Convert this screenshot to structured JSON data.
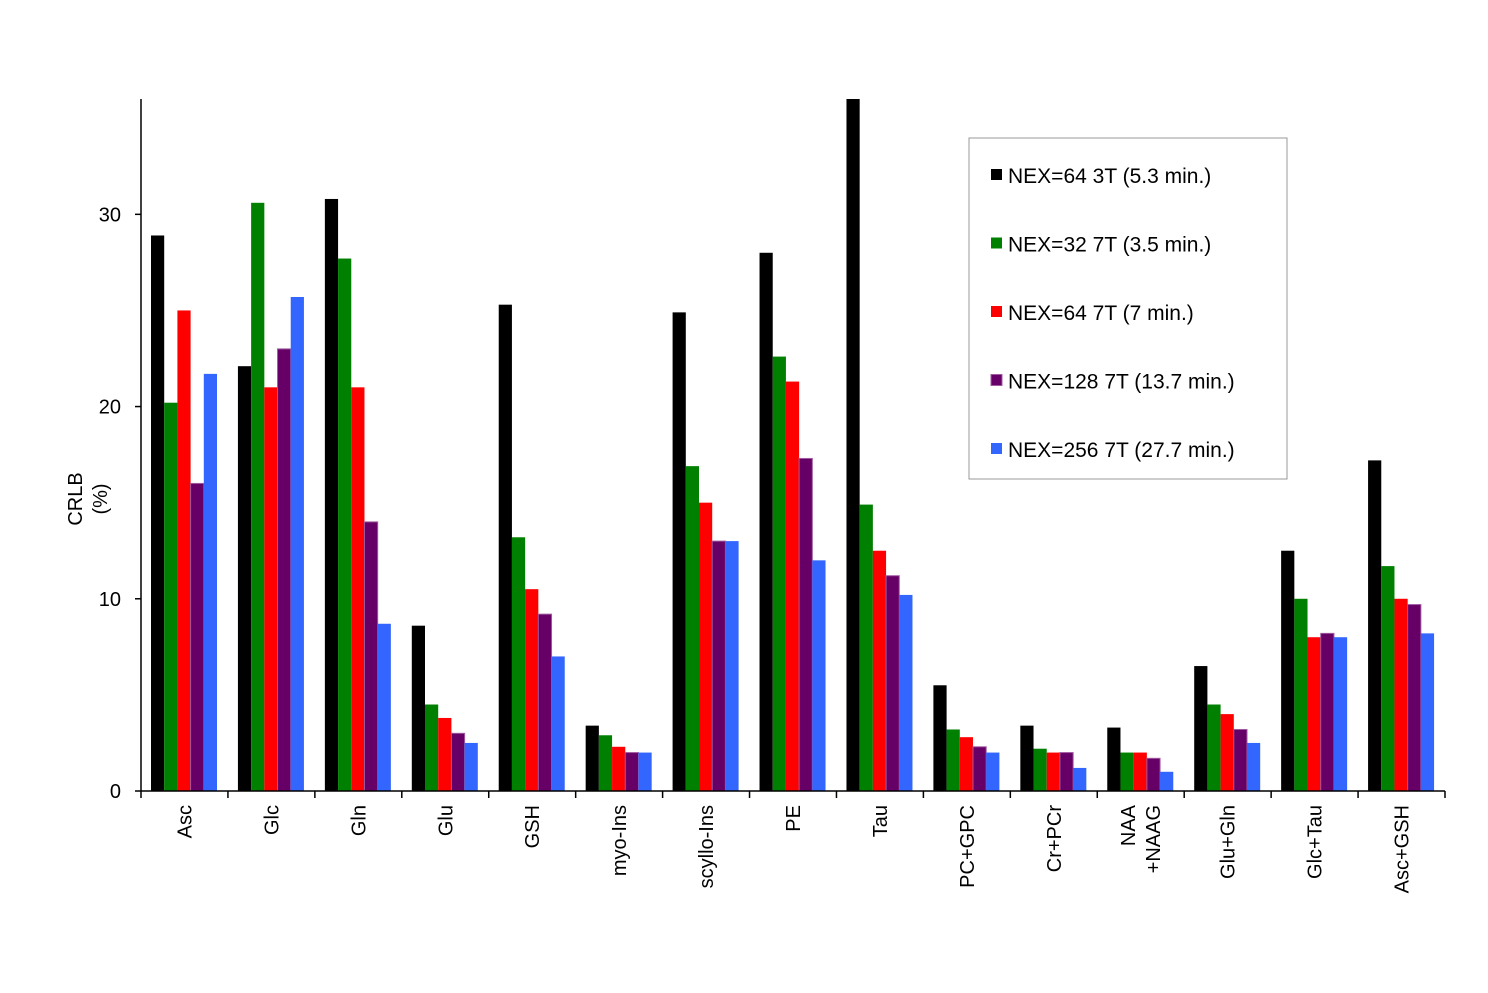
{
  "chart_data": {
    "type": "bar",
    "title": "",
    "xlabel": "",
    "ylabel_lines": [
      "CRLB",
      "(%)"
    ],
    "ylim": [
      0,
      36
    ],
    "yticks": [
      0,
      10,
      20,
      30
    ],
    "grid": false,
    "legend_position": "top-right",
    "categories": [
      [
        "Asc"
      ],
      [
        "Glc"
      ],
      [
        "Gln"
      ],
      [
        "Glu"
      ],
      [
        "GSH"
      ],
      [
        "myo-Ins"
      ],
      [
        "scyllo-Ins"
      ],
      [
        "PE"
      ],
      [
        "Tau"
      ],
      [
        "PC+GPC"
      ],
      [
        "Cr+PCr"
      ],
      [
        "NAA",
        "+NAAG"
      ],
      [
        "Glu+Gln"
      ],
      [
        "Glc+Tau"
      ],
      [
        "Asc+GSH"
      ]
    ],
    "series": [
      {
        "name": "NEX=64 3T (5.3 min.)",
        "color": "#000000",
        "values": [
          28.9,
          22.1,
          30.8,
          8.6,
          25.3,
          3.4,
          24.9,
          28.0,
          36.0,
          5.5,
          3.4,
          3.3,
          6.5,
          12.5,
          17.2
        ]
      },
      {
        "name": "NEX=32 7T (3.5 min.)",
        "color": "#008000",
        "values": [
          20.2,
          30.6,
          27.7,
          4.5,
          13.2,
          2.9,
          16.9,
          22.6,
          14.9,
          3.2,
          2.2,
          2.0,
          4.5,
          10.0,
          11.7
        ]
      },
      {
        "name": "NEX=64 7T (7 min.)",
        "color": "#ff0000",
        "values": [
          25.0,
          21.0,
          21.0,
          3.8,
          10.5,
          2.3,
          15.0,
          21.3,
          12.5,
          2.8,
          2.0,
          2.0,
          4.0,
          8.0,
          10.0
        ]
      },
      {
        "name": "NEX=128 7T (13.7 min.)",
        "color": "#660066",
        "values": [
          16.0,
          23.0,
          14.0,
          3.0,
          9.2,
          2.0,
          13.0,
          17.3,
          11.2,
          2.3,
          2.0,
          1.7,
          3.2,
          8.2,
          9.7
        ]
      },
      {
        "name": "NEX=256 7T (27.7 min.)",
        "color": "#3366ff",
        "values": [
          21.7,
          25.7,
          8.7,
          2.5,
          7.0,
          2.0,
          13.0,
          12.0,
          10.2,
          2.0,
          1.2,
          1.0,
          2.5,
          8.0,
          8.2
        ]
      }
    ]
  }
}
